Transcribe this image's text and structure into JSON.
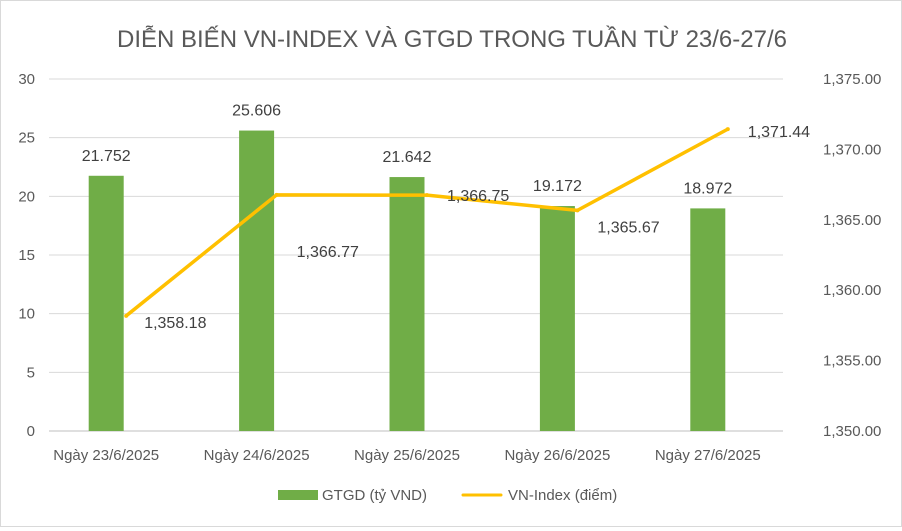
{
  "chart_data": {
    "type": "bar+line",
    "title": "DIỄN BIẾN VN-INDEX VÀ GTGD TRONG TUẦN TỪ 23/6-27/6",
    "categories": [
      "Ngày 23/6/2025",
      "Ngày 24/6/2025",
      "Ngày 25/6/2025",
      "Ngày 26/6/2025",
      "Ngày 27/6/2025"
    ],
    "series": [
      {
        "name": "GTGD (tỷ VND)",
        "type": "bar",
        "axis": "left",
        "color": "#70ad47",
        "values": [
          21.752,
          25.606,
          21.642,
          19.172,
          18.972
        ],
        "labels": [
          "21.752",
          "25.606",
          "21.642",
          "19.172",
          "18.972"
        ]
      },
      {
        "name": "VN-Index (điểm)",
        "type": "line",
        "axis": "right",
        "color": "#ffc000",
        "values": [
          1358.18,
          1366.77,
          1366.75,
          1365.67,
          1371.44
        ],
        "labels": [
          "1,358.18",
          "1,366.77",
          "1,366.75",
          "1,365.67",
          "1,371.44"
        ]
      }
    ],
    "y_left": {
      "range": [
        0,
        30
      ],
      "ticks": [
        "0",
        "5",
        "10",
        "15",
        "20",
        "25",
        "30"
      ]
    },
    "y_right": {
      "range": [
        1350,
        1375
      ],
      "ticks": [
        "1,350.00",
        "1,355.00",
        "1,360.00",
        "1,365.00",
        "1,370.00",
        "1,375.00"
      ]
    },
    "grid": true,
    "legend": "bottom"
  }
}
